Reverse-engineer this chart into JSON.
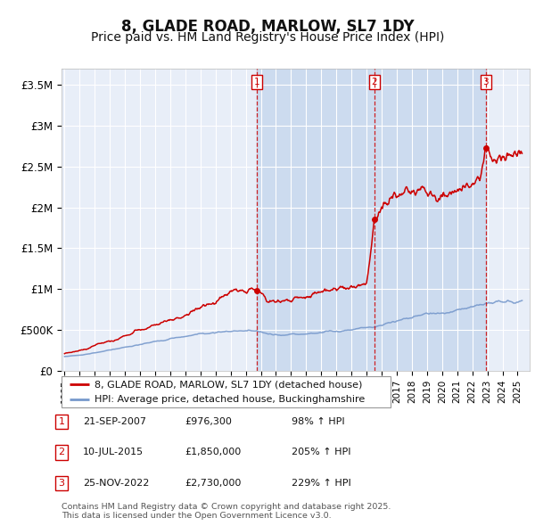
{
  "title": "8, GLADE ROAD, MARLOW, SL7 1DY",
  "subtitle": "Price paid vs. HM Land Registry's House Price Index (HPI)",
  "title_fontsize": 12,
  "subtitle_fontsize": 10,
  "background_color": "#ffffff",
  "plot_bg_color": "#e8eef8",
  "grid_color": "#ffffff",
  "red_line_color": "#cc0000",
  "blue_line_color": "#7799cc",
  "ylim": [
    0,
    3700000
  ],
  "yticks": [
    0,
    500000,
    1000000,
    1500000,
    2000000,
    2500000,
    3000000,
    3500000
  ],
  "ytick_labels": [
    "£0",
    "£500K",
    "£1M",
    "£1.5M",
    "£2M",
    "£2.5M",
    "£3M",
    "£3.5M"
  ],
  "sale_dates_num": [
    2007.72,
    2015.52,
    2022.9
  ],
  "sale_prices": [
    976300,
    1850000,
    2730000
  ],
  "sale_labels": [
    "1",
    "2",
    "3"
  ],
  "vline_color": "#cc0000",
  "legend_line1": "8, GLADE ROAD, MARLOW, SL7 1DY (detached house)",
  "legend_line2": "HPI: Average price, detached house, Buckinghamshire",
  "table_rows": [
    {
      "num": "1",
      "date": "21-SEP-2007",
      "price": "£976,300",
      "pct": "98% ↑ HPI"
    },
    {
      "num": "2",
      "date": "10-JUL-2015",
      "price": "£1,850,000",
      "pct": "205% ↑ HPI"
    },
    {
      "num": "3",
      "date": "25-NOV-2022",
      "price": "£2,730,000",
      "pct": "229% ↑ HPI"
    }
  ],
  "footnote": "Contains HM Land Registry data © Crown copyright and database right 2025.\nThis data is licensed under the Open Government Licence v3.0.",
  "xmin": 1994.8,
  "xmax": 2025.8
}
